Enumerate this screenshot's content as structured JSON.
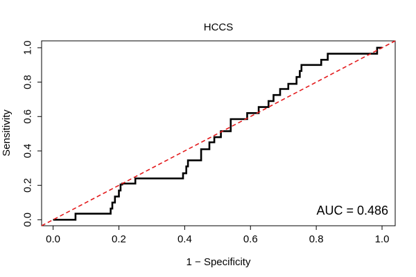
{
  "chart_data": {
    "type": "line",
    "title": "HCCS",
    "xlabel": "1 − Specificity",
    "ylabel": "Sensitivity",
    "xlim": [
      -0.035,
      1.04
    ],
    "ylim": [
      -0.035,
      1.04
    ],
    "x_ticks": [
      0.0,
      0.2,
      0.4,
      0.6,
      0.8,
      1.0
    ],
    "x_tick_labels": [
      "0.0",
      "0.2",
      "0.4",
      "0.6",
      "0.8",
      "1.0"
    ],
    "y_ticks": [
      0.0,
      0.2,
      0.4,
      0.6,
      0.8,
      1.0
    ],
    "y_tick_labels": [
      "0.0",
      "0.2",
      "0.4",
      "0.6",
      "0.8",
      "1.0"
    ],
    "grid": false,
    "annotation": "AUC = 0.486",
    "series": [
      {
        "color": "#000000",
        "style": "solid",
        "x": [
          0.0,
          0.068,
          0.068,
          0.175,
          0.175,
          0.18,
          0.18,
          0.188,
          0.188,
          0.2,
          0.2,
          0.205,
          0.205,
          0.21,
          0.21,
          0.25,
          0.25,
          0.395,
          0.395,
          0.405,
          0.405,
          0.41,
          0.41,
          0.45,
          0.45,
          0.475,
          0.475,
          0.49,
          0.49,
          0.51,
          0.51,
          0.54,
          0.54,
          0.59,
          0.59,
          0.625,
          0.625,
          0.655,
          0.655,
          0.67,
          0.67,
          0.69,
          0.69,
          0.715,
          0.715,
          0.74,
          0.74,
          0.75,
          0.75,
          0.755,
          0.755,
          0.815,
          0.815,
          0.835,
          0.835,
          0.89,
          0.89,
          0.985,
          0.985,
          1.0
        ],
        "y": [
          0.0,
          0.0,
          0.035,
          0.035,
          0.065,
          0.065,
          0.1,
          0.1,
          0.135,
          0.135,
          0.17,
          0.17,
          0.205,
          0.205,
          0.21,
          0.21,
          0.24,
          0.24,
          0.27,
          0.27,
          0.31,
          0.31,
          0.345,
          0.345,
          0.41,
          0.41,
          0.45,
          0.45,
          0.48,
          0.48,
          0.515,
          0.515,
          0.585,
          0.585,
          0.62,
          0.62,
          0.655,
          0.655,
          0.69,
          0.69,
          0.725,
          0.725,
          0.76,
          0.76,
          0.79,
          0.79,
          0.83,
          0.83,
          0.865,
          0.865,
          0.9,
          0.9,
          0.93,
          0.93,
          0.965,
          0.965,
          0.965,
          0.965,
          1.0,
          1.0
        ]
      },
      {
        "color": "#e31a1c",
        "style": "dashed",
        "x": [
          -0.035,
          1.04
        ],
        "y": [
          -0.035,
          1.04
        ]
      }
    ]
  }
}
